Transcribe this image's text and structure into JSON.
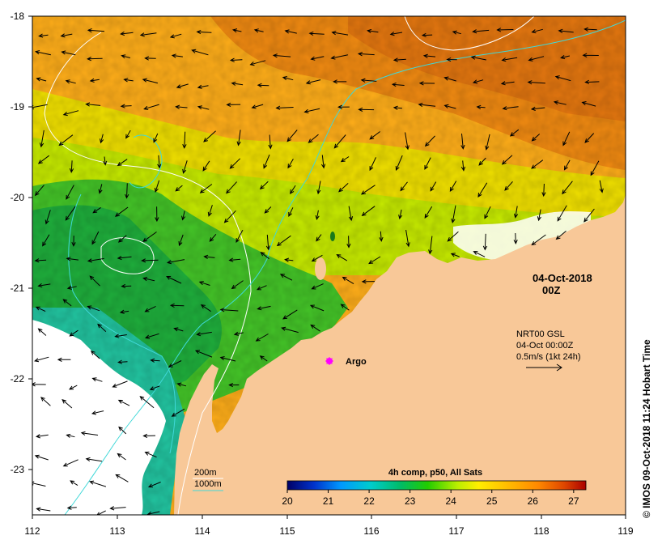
{
  "map": {
    "lon_ticks": [
      "112",
      "113",
      "114",
      "115",
      "116",
      "117",
      "118",
      "119"
    ],
    "lat_ticks": [
      "-18",
      "-19",
      "-20",
      "-21",
      "-22",
      "-23"
    ],
    "lon_range": [
      112,
      119
    ],
    "lat_range": [
      -23.5,
      -18
    ],
    "date_label": "04-Oct-2018",
    "time_label": "00Z",
    "current_info": {
      "line1": "NRT00 GSL",
      "line2": "04-Oct 00:00Z",
      "line3": "0.5m/s (1kt 24h)"
    },
    "argo_label": "Argo",
    "argo_marker": {
      "lon": 115.55,
      "lat": -21.85,
      "color": "#ff00ff"
    },
    "contour_legend": {
      "c200": "200m",
      "c1000": "1000m",
      "c200_color": "#ffffff",
      "c1000_color": "#40d8d8"
    },
    "colorbar": {
      "title": "4h comp, p50, All Sats",
      "ticks": [
        "20",
        "21",
        "22",
        "23",
        "24",
        "25",
        "26",
        "27"
      ],
      "range": [
        20,
        27.3
      ],
      "colors": [
        "#000066",
        "#0033cc",
        "#0099ff",
        "#00cccc",
        "#00bb66",
        "#22cc00",
        "#bbee00",
        "#ffee00",
        "#ffbb00",
        "#ff8800",
        "#dd4400",
        "#aa0000"
      ]
    },
    "credit": "© IMOS 09-Oct-2018 11:24 Hobart Time",
    "land_color": "#f8c898",
    "nodata_color": "#ffffff"
  }
}
